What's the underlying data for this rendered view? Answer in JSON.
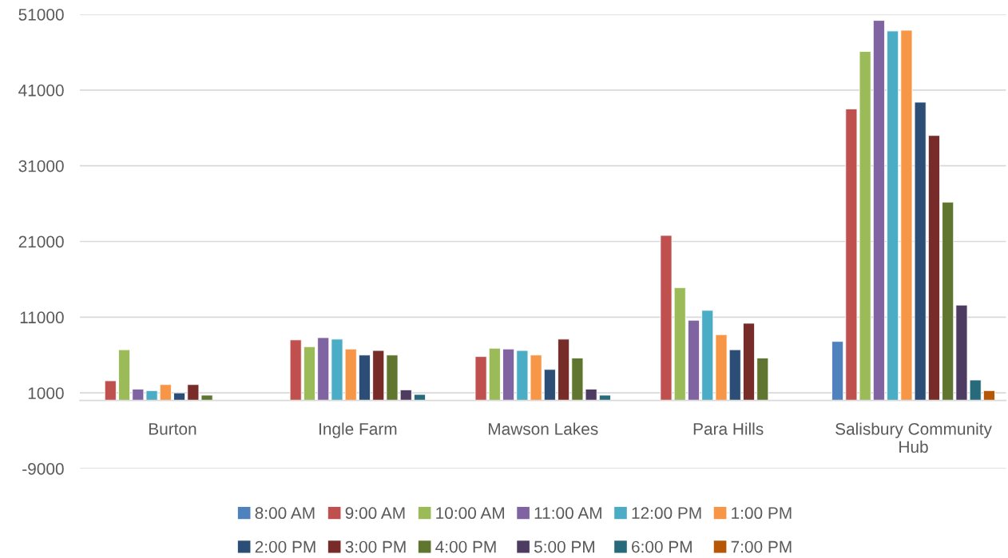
{
  "chart_data": {
    "type": "bar",
    "categories": [
      "Burton",
      "Ingle Farm",
      "Mawson Lakes",
      "Para Hills",
      "Salisbury Community\nHub"
    ],
    "series": [
      {
        "name": "8:00 AM",
        "color": "#4f81bd",
        "values": [
          null,
          null,
          null,
          null,
          7800
        ]
      },
      {
        "name": "9:00 AM",
        "color": "#c0504d",
        "values": [
          2600,
          8000,
          5800,
          21800,
          38500
        ]
      },
      {
        "name": "10:00 AM",
        "color": "#9bbb59",
        "values": [
          6700,
          7100,
          6900,
          14900,
          46100
        ]
      },
      {
        "name": "11:00 AM",
        "color": "#8064a2",
        "values": [
          1500,
          8300,
          6800,
          10600,
          50200
        ]
      },
      {
        "name": "12:00 PM",
        "color": "#4bacc6",
        "values": [
          1300,
          8100,
          6600,
          11900,
          48800
        ]
      },
      {
        "name": "1:00 PM",
        "color": "#f79646",
        "values": [
          2100,
          6800,
          6000,
          8700,
          48900
        ]
      },
      {
        "name": "2:00 PM",
        "color": "#2c4d75",
        "values": [
          1000,
          6000,
          4100,
          6700,
          39400
        ]
      },
      {
        "name": "3:00 PM",
        "color": "#772c2a",
        "values": [
          2100,
          6600,
          8100,
          10200,
          35000
        ]
      },
      {
        "name": "4:00 PM",
        "color": "#5f7530",
        "values": [
          700,
          6000,
          5600,
          5600,
          26200
        ]
      },
      {
        "name": "5:00 PM",
        "color": "#4d3b62",
        "values": [
          null,
          1400,
          1500,
          null,
          12600
        ]
      },
      {
        "name": "6:00 PM",
        "color": "#276a7c",
        "values": [
          null,
          800,
          700,
          null,
          2700
        ]
      },
      {
        "name": "7:00 PM",
        "color": "#b65708",
        "values": [
          null,
          null,
          null,
          null,
          1300
        ]
      }
    ],
    "ylim": [
      -9000,
      51000
    ],
    "yticks": [
      -9000,
      1000,
      11000,
      21000,
      31000,
      41000,
      51000
    ],
    "grid": "y",
    "legend": "bottom"
  }
}
